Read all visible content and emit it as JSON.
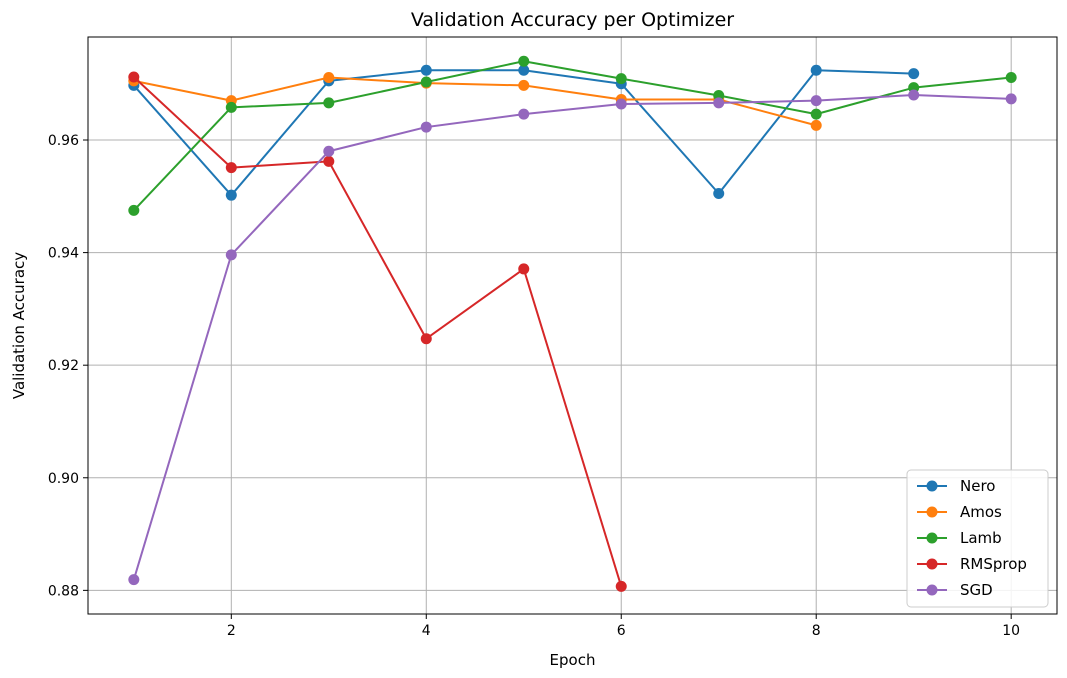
{
  "chart_data": {
    "type": "line",
    "title": "Validation Accuracy per Optimizer",
    "xlabel": "Epoch",
    "ylabel": "Validation Accuracy",
    "xlim": [
      0.53,
      10.47
    ],
    "ylim": [
      0.8758,
      0.9783
    ],
    "xticks": [
      2,
      4,
      6,
      8,
      10
    ],
    "xtick_labels": [
      "2",
      "4",
      "6",
      "8",
      "10"
    ],
    "yticks": [
      0.88,
      0.9,
      0.92,
      0.94,
      0.96
    ],
    "ytick_labels": [
      "0.88",
      "0.90",
      "0.92",
      "0.94",
      "0.96"
    ],
    "grid": true,
    "legend_position": "lower-right",
    "series": [
      {
        "name": "Nero",
        "color": "#1f77b4",
        "x": [
          1,
          2,
          3,
          4,
          5,
          6,
          7,
          8,
          9
        ],
        "y": [
          0.9697,
          0.9502,
          0.9705,
          0.9724,
          0.9724,
          0.97,
          0.9505,
          0.9724,
          0.9718
        ]
      },
      {
        "name": "Amos",
        "color": "#ff7f0e",
        "x": [
          1,
          2,
          3,
          4,
          5,
          6,
          7,
          8
        ],
        "y": [
          0.9705,
          0.967,
          0.9711,
          0.9701,
          0.9697,
          0.9672,
          0.9672,
          0.9626
        ]
      },
      {
        "name": "Lamb",
        "color": "#2ca02c",
        "x": [
          1,
          2,
          3,
          4,
          5,
          6,
          7,
          8,
          9,
          10
        ],
        "y": [
          0.9475,
          0.9658,
          0.9666,
          0.9703,
          0.974,
          0.9709,
          0.9679,
          0.9646,
          0.9693,
          0.9711
        ]
      },
      {
        "name": "RMSprop",
        "color": "#d62728",
        "x": [
          1,
          2,
          3,
          4,
          5,
          6
        ],
        "y": [
          0.9712,
          0.9551,
          0.9562,
          0.9247,
          0.9371,
          0.8807
        ]
      },
      {
        "name": "SGD",
        "color": "#9467bd",
        "x": [
          1,
          2,
          3,
          4,
          5,
          6,
          7,
          8,
          9,
          10
        ],
        "y": [
          0.8819,
          0.9396,
          0.958,
          0.9623,
          0.9646,
          0.9664,
          0.9666,
          0.967,
          0.968,
          0.9673
        ]
      }
    ]
  }
}
